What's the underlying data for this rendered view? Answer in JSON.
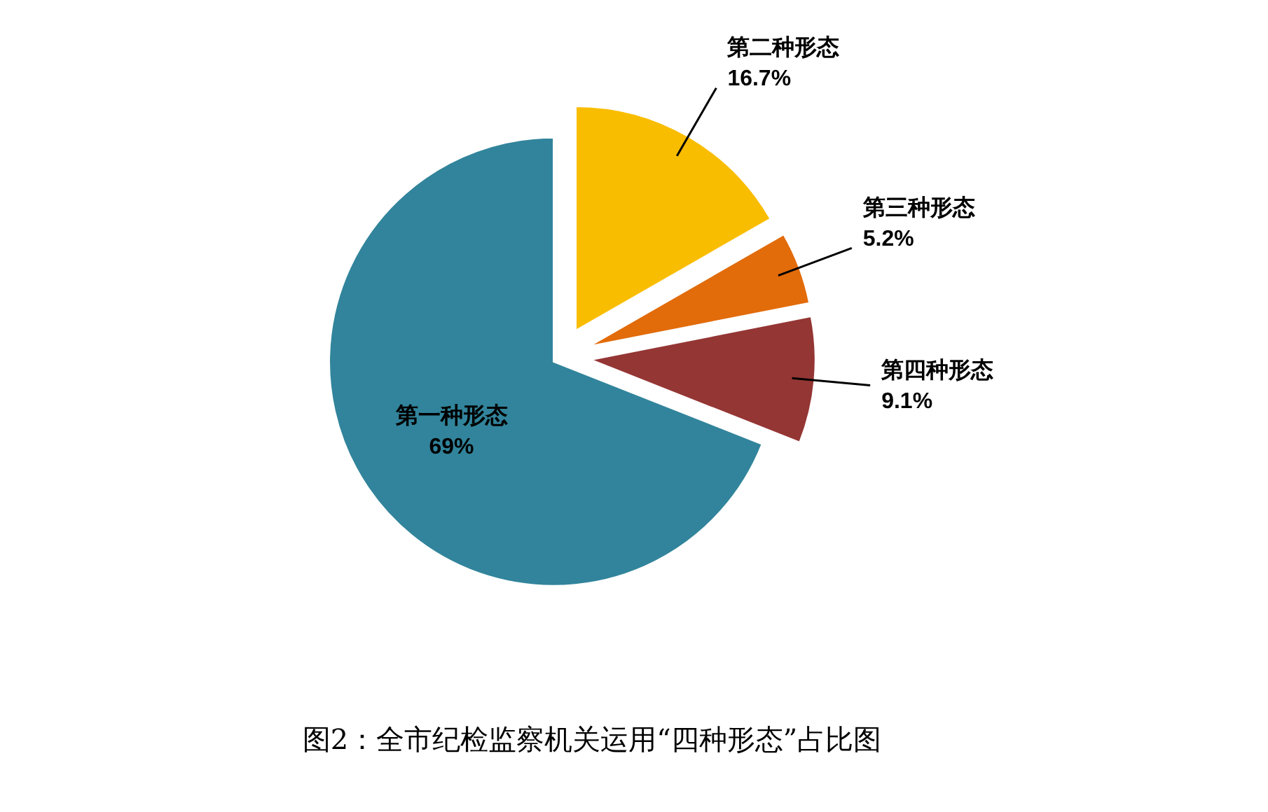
{
  "chart_data": {
    "type": "pie",
    "title": "图2：全市纪检监察机关运用“四种形态”占比图",
    "categories": [
      "第一种形态",
      "第二种形态",
      "第三种形态",
      "第四种形态"
    ],
    "values": [
      69,
      16.7,
      5.2,
      9.1
    ],
    "value_labels": [
      "69%",
      "16.7%",
      "5.2%",
      "9.1%"
    ],
    "colors": [
      "#31849b",
      "#f9bd00",
      "#e26b0a",
      "#943634"
    ]
  }
}
